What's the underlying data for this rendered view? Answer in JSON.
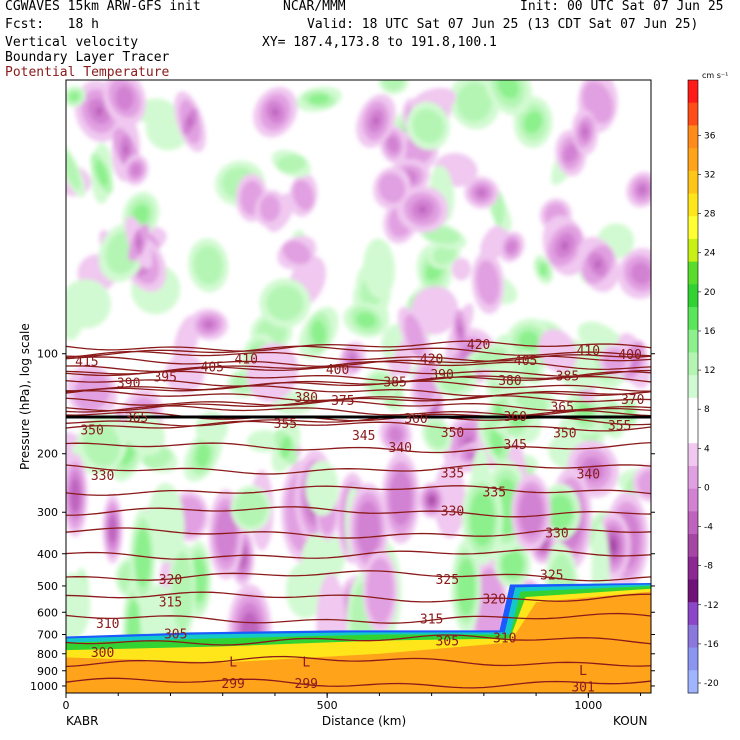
{
  "header": {
    "left_line1": "CGWAVES 15km ARW-GFS init",
    "center_line1": "NCAR/MMM",
    "right_line1": "Init: 00 UTC Sat 07 Jun 25",
    "left_line2": "Fcst:   18 h",
    "right_line2": "Valid: 18 UTC Sat 07 Jun 25 (13 CDT Sat 07 Jun 25)",
    "line3_left": "Vertical velocity",
    "line3_right": "XY= 187.4,173.8 to 191.8,100.1",
    "line4": "Boundary Layer Tracer",
    "line5": "Potential Temperature"
  },
  "colors": {
    "potential_temperature": "#8b1a1a",
    "frame": "#000000"
  },
  "chart_data": {
    "type": "heatmap",
    "xlabel": "Distance (km)",
    "ylabel": "Pressure (hPa), log scale",
    "x_ticks": [
      0,
      500,
      1000
    ],
    "x_range": [
      0,
      1120
    ],
    "x_end_labels": [
      "KABR",
      "KOUN"
    ],
    "y_ticks": [
      100,
      200,
      300,
      400,
      500,
      600,
      700,
      800,
      900,
      1000
    ],
    "y_range": [
      1050,
      15
    ],
    "y_scale": "log",
    "colorbar": {
      "unit": "cm s⁻¹",
      "ticks": [
        36,
        32,
        28,
        24,
        20,
        16,
        12,
        8,
        4,
        0,
        -4,
        -8,
        -12,
        -16,
        -20
      ],
      "colors": [
        "#ff1a1a",
        "#ff4d1a",
        "#ff8c1a",
        "#ffa31a",
        "#ffc61a",
        "#ffe61a",
        "#ffff33",
        "#c8f014",
        "#5adc2d",
        "#32d232",
        "#5ae65a",
        "#8cf08c",
        "#b4f5b4",
        "#d2fad2",
        "#ffffff",
        "#ffffff",
        "#f0c8f0",
        "#e1a0e1",
        "#d282d2",
        "#be64be",
        "#a546a5",
        "#8c2891",
        "#6e1478",
        "#8c46c8",
        "#8c78dc",
        "#8c96f0",
        "#a0b4ff"
      ]
    },
    "theta_labels": [
      {
        "text": "415",
        "x": 40,
        "p": 106
      },
      {
        "text": "410",
        "x": 345,
        "p": 104
      },
      {
        "text": "420",
        "x": 790,
        "p": 94
      },
      {
        "text": "410",
        "x": 1000,
        "p": 98
      },
      {
        "text": "400",
        "x": 1080,
        "p": 101
      },
      {
        "text": "390",
        "x": 120,
        "p": 123
      },
      {
        "text": "395",
        "x": 190,
        "p": 118
      },
      {
        "text": "405",
        "x": 280,
        "p": 110
      },
      {
        "text": "400",
        "x": 520,
        "p": 112
      },
      {
        "text": "420",
        "x": 700,
        "p": 104
      },
      {
        "text": "390",
        "x": 720,
        "p": 116
      },
      {
        "text": "405",
        "x": 880,
        "p": 105
      },
      {
        "text": "385",
        "x": 630,
        "p": 122
      },
      {
        "text": "380",
        "x": 850,
        "p": 121
      },
      {
        "text": "385",
        "x": 960,
        "p": 117
      },
      {
        "text": "380",
        "x": 460,
        "p": 136
      },
      {
        "text": "375",
        "x": 530,
        "p": 139
      },
      {
        "text": "370",
        "x": 1085,
        "p": 138
      },
      {
        "text": "365",
        "x": 135,
        "p": 156
      },
      {
        "text": "360",
        "x": 670,
        "p": 157
      },
      {
        "text": "360",
        "x": 860,
        "p": 155
      },
      {
        "text": "365",
        "x": 950,
        "p": 145
      },
      {
        "text": "350",
        "x": 50,
        "p": 170
      },
      {
        "text": "355",
        "x": 420,
        "p": 163
      },
      {
        "text": "350",
        "x": 740,
        "p": 173
      },
      {
        "text": "350",
        "x": 955,
        "p": 174
      },
      {
        "text": "355",
        "x": 1060,
        "p": 165
      },
      {
        "text": "345",
        "x": 570,
        "p": 177
      },
      {
        "text": "340",
        "x": 640,
        "p": 192
      },
      {
        "text": "345",
        "x": 860,
        "p": 188
      },
      {
        "text": "340",
        "x": 1000,
        "p": 231
      },
      {
        "text": "330",
        "x": 70,
        "p": 233
      },
      {
        "text": "335",
        "x": 740,
        "p": 229
      },
      {
        "text": "335",
        "x": 820,
        "p": 262
      },
      {
        "text": "330",
        "x": 740,
        "p": 298
      },
      {
        "text": "330",
        "x": 940,
        "p": 348
      },
      {
        "text": "320",
        "x": 200,
        "p": 480
      },
      {
        "text": "325",
        "x": 730,
        "p": 480
      },
      {
        "text": "325",
        "x": 930,
        "p": 465
      },
      {
        "text": "315",
        "x": 200,
        "p": 560
      },
      {
        "text": "320",
        "x": 820,
        "p": 550
      },
      {
        "text": "315",
        "x": 700,
        "p": 630
      },
      {
        "text": "310",
        "x": 80,
        "p": 650
      },
      {
        "text": "305",
        "x": 210,
        "p": 700
      },
      {
        "text": "305",
        "x": 730,
        "p": 735
      },
      {
        "text": "310",
        "x": 840,
        "p": 720
      },
      {
        "text": "300",
        "x": 70,
        "p": 795
      },
      {
        "text": "299",
        "x": 320,
        "p": 985
      },
      {
        "text": "299",
        "x": 460,
        "p": 985
      },
      {
        "text": "301",
        "x": 990,
        "p": 1010
      }
    ],
    "low_markers": [
      {
        "text": "L",
        "x": 320,
        "p": 850
      },
      {
        "text": "L",
        "x": 460,
        "p": 850
      },
      {
        "text": "L",
        "x": 990,
        "p": 900
      }
    ]
  }
}
